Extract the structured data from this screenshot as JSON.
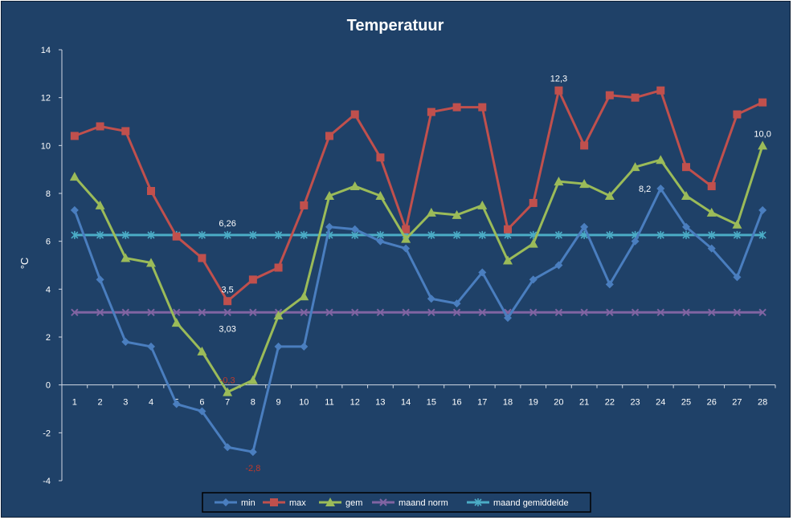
{
  "chart_data": {
    "type": "line",
    "title": "Temperatuur",
    "xlabel": "",
    "ylabel": "°C",
    "x": [
      1,
      2,
      3,
      4,
      5,
      6,
      7,
      8,
      9,
      10,
      11,
      12,
      13,
      14,
      15,
      16,
      17,
      18,
      19,
      20,
      21,
      22,
      23,
      24,
      25,
      26,
      27,
      28
    ],
    "ylim": [
      -4,
      14
    ],
    "yticks": [
      -4,
      -2,
      0,
      2,
      4,
      6,
      8,
      10,
      12,
      14
    ],
    "grid": false,
    "legend": "bottom",
    "series": [
      {
        "name": "min",
        "color": "#4a7ebf",
        "marker": "diamond",
        "values": [
          7.3,
          4.4,
          1.8,
          1.6,
          -0.8,
          -1.1,
          -2.6,
          -2.8,
          1.6,
          1.6,
          6.6,
          6.5,
          6.0,
          5.7,
          3.6,
          3.4,
          4.7,
          2.8,
          4.4,
          5.0,
          6.6,
          4.2,
          6.0,
          8.2,
          6.6,
          5.7,
          4.5,
          7.3
        ]
      },
      {
        "name": "max",
        "color": "#c0504d",
        "marker": "square",
        "values": [
          10.4,
          10.8,
          10.6,
          8.1,
          6.2,
          5.3,
          3.5,
          4.4,
          4.9,
          7.5,
          10.4,
          11.3,
          9.5,
          6.5,
          11.4,
          11.6,
          11.6,
          6.5,
          7.6,
          12.3,
          10.0,
          12.1,
          12.0,
          12.3,
          9.1,
          8.3,
          11.3,
          11.8
        ]
      },
      {
        "name": "gem",
        "color": "#9bbb59",
        "marker": "triangle",
        "values": [
          8.7,
          7.5,
          5.3,
          5.1,
          2.6,
          1.4,
          -0.3,
          0.2,
          2.9,
          3.7,
          7.9,
          8.3,
          7.9,
          6.1,
          7.2,
          7.1,
          7.5,
          5.2,
          5.9,
          8.5,
          8.4,
          7.9,
          9.1,
          9.4,
          7.9,
          7.2,
          6.7,
          10.0
        ]
      },
      {
        "name": "maand norm",
        "color": "#8064a2",
        "marker": "x",
        "values": [
          3.03,
          3.03,
          3.03,
          3.03,
          3.03,
          3.03,
          3.03,
          3.03,
          3.03,
          3.03,
          3.03,
          3.03,
          3.03,
          3.03,
          3.03,
          3.03,
          3.03,
          3.03,
          3.03,
          3.03,
          3.03,
          3.03,
          3.03,
          3.03,
          3.03,
          3.03,
          3.03,
          3.03
        ]
      },
      {
        "name": "maand gemiddelde",
        "color": "#4bacc6",
        "marker": "star",
        "values": [
          6.26,
          6.26,
          6.26,
          6.26,
          6.26,
          6.26,
          6.26,
          6.26,
          6.26,
          6.26,
          6.26,
          6.26,
          6.26,
          6.26,
          6.26,
          6.26,
          6.26,
          6.26,
          6.26,
          6.26,
          6.26,
          6.26,
          6.26,
          6.26,
          6.26,
          6.26,
          6.26,
          6.26
        ]
      }
    ],
    "annotations": [
      {
        "text": "6,26",
        "x": 7,
        "y": 6.26,
        "color": "#ffffff",
        "pos": "above"
      },
      {
        "text": "3,5",
        "x": 7,
        "y": 3.5,
        "color": "#ffffff",
        "pos": "above"
      },
      {
        "text": "3,03",
        "x": 7,
        "y": 3.03,
        "color": "#ffffff",
        "pos": "below"
      },
      {
        "text": "-0,3",
        "x": 7,
        "y": -0.3,
        "color": "#c0392b",
        "pos": "above"
      },
      {
        "text": "-2,8",
        "x": 8,
        "y": -2.8,
        "color": "#c0392b",
        "pos": "below"
      },
      {
        "text": "12,3",
        "x": 20,
        "y": 12.3,
        "color": "#ffffff",
        "pos": "above"
      },
      {
        "text": "8,2",
        "x": 24,
        "y": 8.2,
        "color": "#ffffff",
        "pos": "left"
      },
      {
        "text": "10,0",
        "x": 28,
        "y": 10.0,
        "color": "#ffffff",
        "pos": "above"
      }
    ]
  }
}
